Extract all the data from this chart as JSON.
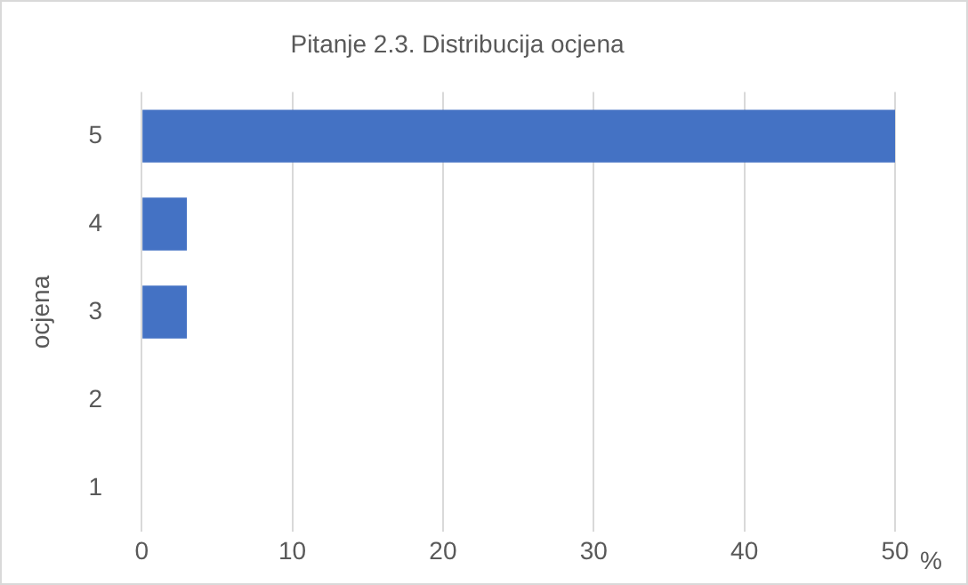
{
  "chart_data": {
    "type": "bar",
    "orientation": "horizontal",
    "title": "Pitanje 2.3. Distribucija ocjena",
    "ylabel": "ocjena",
    "xlabel": "%",
    "categories": [
      "5",
      "4",
      "3",
      "2",
      "1"
    ],
    "values": [
      50,
      3,
      3,
      0,
      0
    ],
    "color": "#4472c4",
    "xlim": [
      0,
      50
    ],
    "xticks": [
      0,
      10,
      20,
      30,
      40,
      50
    ],
    "grid": "x",
    "legend": false
  }
}
